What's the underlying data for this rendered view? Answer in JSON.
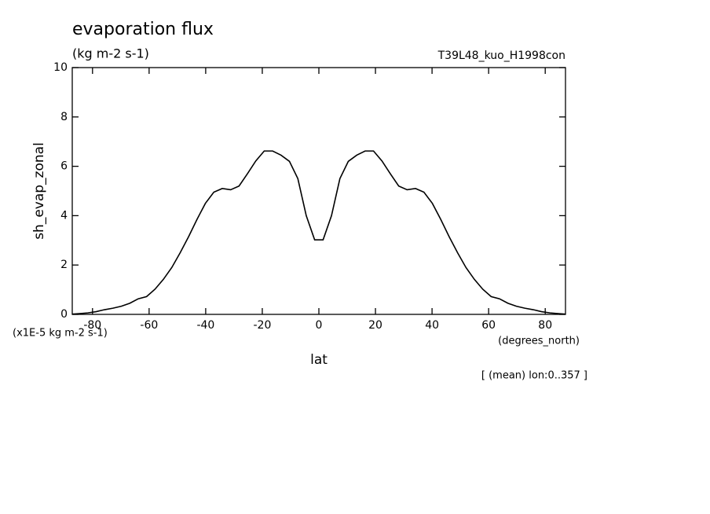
{
  "chart_data": {
    "type": "line",
    "title": "evaporation flux",
    "subtitle": "(kg m-2 s-1)",
    "experiment": "T39L48_kuo_H1998con",
    "y_label": "sh_evap_zonal",
    "y_units": "(x1E-5 kg m-2 s-1)",
    "x_units": "(degrees_north)",
    "x_label": "lat",
    "note": "[ (mean) lon:0..357 ]",
    "color": "#000000",
    "x": [
      -87.16,
      -84.65,
      -81.68,
      -78.71,
      -75.74,
      -72.77,
      -69.8,
      -66.83,
      -63.86,
      -60.89,
      -57.92,
      -54.95,
      -51.98,
      -49.01,
      -46.04,
      -43.07,
      -40.1,
      -37.13,
      -34.16,
      -31.19,
      -28.22,
      -25.25,
      -22.28,
      -19.31,
      -16.34,
      -13.37,
      -10.4,
      -7.43,
      -4.46,
      -1.49,
      1.49,
      4.46,
      7.43,
      10.4,
      13.37,
      16.34,
      19.31,
      22.28,
      25.25,
      28.22,
      31.19,
      34.16,
      37.13,
      40.1,
      43.07,
      46.04,
      49.01,
      51.98,
      54.95,
      57.92,
      60.89,
      63.86,
      66.83,
      69.8,
      72.77,
      75.74,
      78.71,
      81.68,
      84.65,
      87.16
    ],
    "values": [
      0.01,
      0.03,
      0.06,
      0.11,
      0.19,
      0.25,
      0.33,
      0.45,
      0.63,
      0.72,
      1.02,
      1.42,
      1.9,
      2.5,
      3.15,
      3.85,
      4.5,
      4.95,
      5.1,
      5.05,
      5.2,
      5.7,
      6.22,
      6.62,
      6.62,
      6.45,
      6.2,
      5.5,
      4.0,
      3.02,
      3.02,
      4.0,
      5.5,
      6.2,
      6.45,
      6.62,
      6.62,
      6.22,
      5.7,
      5.2,
      5.05,
      5.1,
      4.95,
      4.5,
      3.85,
      3.15,
      2.5,
      1.9,
      1.42,
      1.02,
      0.72,
      0.63,
      0.45,
      0.33,
      0.25,
      0.19,
      0.11,
      0.06,
      0.03,
      0.01
    ],
    "xlim": [
      -87.16,
      87.16
    ],
    "ylim": [
      0,
      10
    ],
    "xticks": [
      -80,
      -60,
      -40,
      -20,
      0,
      20,
      40,
      60,
      80
    ],
    "yticks": [
      0,
      2,
      4,
      6,
      8,
      10
    ]
  }
}
